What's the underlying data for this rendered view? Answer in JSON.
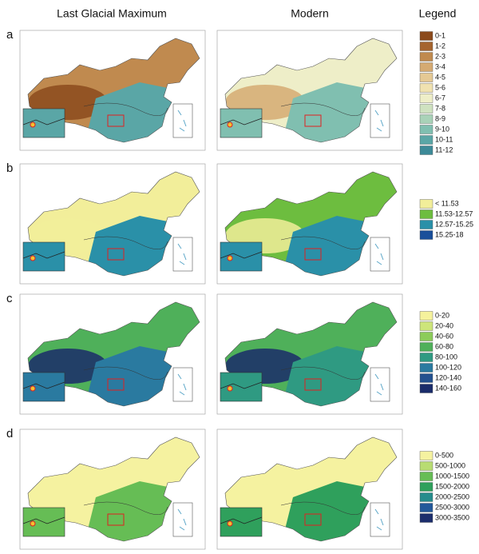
{
  "headers": {
    "lgm": "Last Glacial Maximum",
    "modern": "Modern",
    "legend": "Legend"
  },
  "panels": [
    {
      "letter": "a",
      "legend": [
        {
          "label": "0-1",
          "color": "#8b4a1c"
        },
        {
          "label": "1-2",
          "color": "#a5642e"
        },
        {
          "label": "2-3",
          "color": "#c08a4f"
        },
        {
          "label": "3-4",
          "color": "#d5aa72"
        },
        {
          "label": "4-5",
          "color": "#e5c994"
        },
        {
          "label": "5-6",
          "color": "#f0e2b0"
        },
        {
          "label": "6-7",
          "color": "#eeeec8"
        },
        {
          "label": "7-8",
          "color": "#cfe2c0"
        },
        {
          "label": "8-9",
          "color": "#a9d2b8"
        },
        {
          "label": "9-10",
          "color": "#80bfb0"
        },
        {
          "label": "10-11",
          "color": "#5aa6a6"
        },
        {
          "label": "11-12",
          "color": "#3d8a98"
        }
      ]
    },
    {
      "letter": "b",
      "legend": [
        {
          "label": "< 11.53",
          "color": "#f2ee9a"
        },
        {
          "label": "11.53-12.57",
          "color": "#6dbd3f"
        },
        {
          "label": "12.57-15.25",
          "color": "#2a90a8"
        },
        {
          "label": "15.25-18",
          "color": "#1a4f9a"
        }
      ]
    },
    {
      "letter": "c",
      "legend": [
        {
          "label": "0-20",
          "color": "#f5f29c"
        },
        {
          "label": "20-40",
          "color": "#cde57a"
        },
        {
          "label": "40-60",
          "color": "#8ccc5a"
        },
        {
          "label": "60-80",
          "color": "#4fb05a"
        },
        {
          "label": "80-100",
          "color": "#2f9a82"
        },
        {
          "label": "100-120",
          "color": "#2a7aa0"
        },
        {
          "label": "120-140",
          "color": "#23518f"
        },
        {
          "label": "140-160",
          "color": "#1a2c6a"
        }
      ]
    },
    {
      "letter": "d",
      "legend": [
        {
          "label": "0-500",
          "color": "#f5f2a0"
        },
        {
          "label": "500-1000",
          "color": "#b8dc72"
        },
        {
          "label": "1000-1500",
          "color": "#66bd55"
        },
        {
          "label": "1500-2000",
          "color": "#2fa05c"
        },
        {
          "label": "2000-2500",
          "color": "#268c8c"
        },
        {
          "label": "2500-3000",
          "color": "#22589a"
        },
        {
          "label": "3000-3500",
          "color": "#1c2e6c"
        }
      ]
    }
  ]
}
